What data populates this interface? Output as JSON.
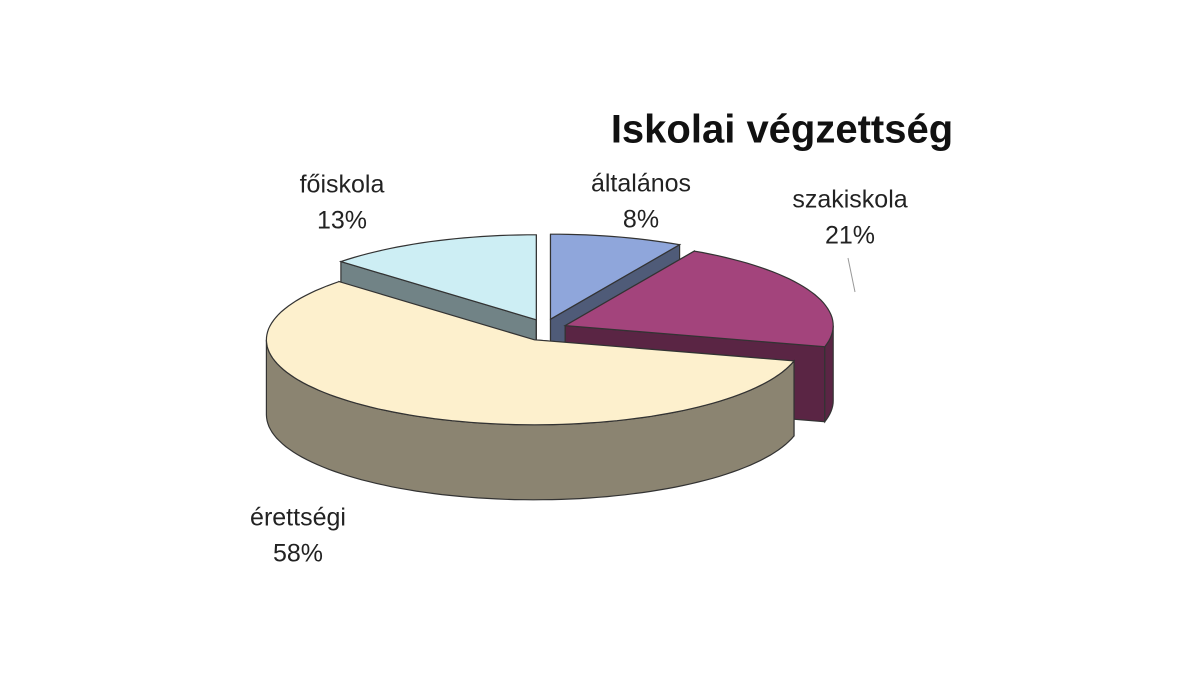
{
  "chart_data": {
    "type": "pie3d",
    "title": "Iskolai végzettség",
    "categories": [
      "általános",
      "szakiskola",
      "érettségi",
      "főiskola"
    ],
    "values": [
      8,
      21,
      58,
      13
    ],
    "value_labels": [
      "8%",
      "21%",
      "58%",
      "13%"
    ],
    "colors": [
      "#8fa6db",
      "#a3447c",
      "#fdf0cd",
      "#cdeef4"
    ]
  }
}
